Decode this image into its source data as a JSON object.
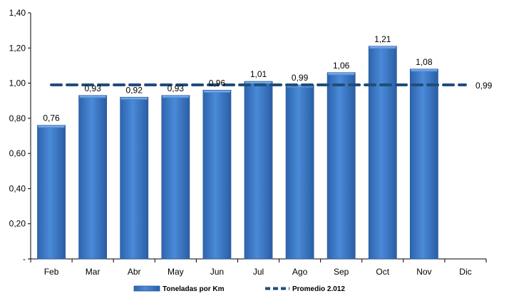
{
  "chart_data": {
    "type": "bar",
    "categories": [
      "Feb",
      "Mar",
      "Abr",
      "May",
      "Jun",
      "Jul",
      "Ago",
      "Sep",
      "Oct",
      "Nov",
      "Dic"
    ],
    "series": [
      {
        "name": "Toneladas por Km",
        "type": "bar",
        "values": [
          0.76,
          0.93,
          0.92,
          0.93,
          0.96,
          1.01,
          0.99,
          1.06,
          1.21,
          1.08,
          null
        ],
        "labels": [
          "0,76",
          "0,93",
          "0,92",
          "0,93",
          "0,96",
          "1,01",
          "0,99",
          "1,06",
          "1,21",
          "1,08",
          ""
        ]
      },
      {
        "name": "Promedio 2.012",
        "type": "line",
        "style": "dashed",
        "value": 0.99,
        "label": "0,99"
      }
    ],
    "y_ticks": [
      "-",
      "0,20",
      "0,40",
      "0,60",
      "0,80",
      "1,00",
      "1,20",
      "1,40"
    ],
    "ylim": [
      0,
      1.4
    ],
    "grid": false,
    "legend_position": "bottom",
    "colors": {
      "bar": "#3b78c7",
      "bar_edge": "#2a5a9a",
      "bar_highlight": "#6fa3e3",
      "line": "#1f4e79",
      "axis": "#000000"
    }
  }
}
